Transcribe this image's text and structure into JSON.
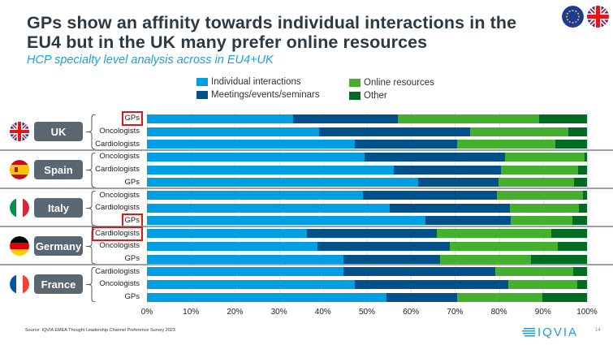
{
  "header": {
    "title": "GPs show an affinity towards individual interactions in the EU4 but in the UK many prefer online resources",
    "subtitle": "HCP specialty level analysis across in EU4+UK",
    "flags": [
      "eu-flag",
      "uk-flag"
    ]
  },
  "colors": {
    "individual": "#009fe3",
    "meetings": "#00508a",
    "online": "#44b02e",
    "other": "#006b22",
    "country_box": "#5b6770",
    "highlight": "#e0161b"
  },
  "chart_data": {
    "type": "bar",
    "orientation": "horizontal-stacked-100",
    "title": "HCP specialty level analysis across in EU4+UK",
    "xlabel": "",
    "ylabel": "",
    "xlim": [
      0,
      100
    ],
    "x_ticks": [
      "0%",
      "10%",
      "20%",
      "30%",
      "40%",
      "50%",
      "60%",
      "70%",
      "80%",
      "90%",
      "100%"
    ],
    "legend": [
      "Individual interactions",
      "Meetings/events/seminars",
      "Online resources",
      "Other"
    ],
    "legend_position": "top",
    "groups": [
      {
        "country": "UK",
        "flag": "uk-flag",
        "rows": [
          {
            "specialty": "GPs",
            "highlighted": true,
            "values": [
              33.3,
              23.7,
              32.1,
              10.9
            ]
          },
          {
            "specialty": "Oncologists",
            "highlighted": false,
            "values": [
              39.2,
              34.3,
              22.2,
              4.3
            ]
          },
          {
            "specialty": "Cardiologists",
            "highlighted": false,
            "values": [
              47.2,
              23.3,
              22.3,
              7.2
            ]
          }
        ]
      },
      {
        "country": "Spain",
        "flag": "spain-flag",
        "rows": [
          {
            "specialty": "Oncologists",
            "highlighted": false,
            "values": [
              49.5,
              31.9,
              18.0,
              0.6
            ]
          },
          {
            "specialty": "Cardiologists",
            "highlighted": false,
            "values": [
              56.1,
              24.3,
              17.6,
              2.0
            ]
          },
          {
            "specialty": "GPs",
            "highlighted": false,
            "values": [
              61.7,
              18.2,
              17.1,
              3.0
            ]
          }
        ]
      },
      {
        "country": "Italy",
        "flag": "italy-flag",
        "rows": [
          {
            "specialty": "Oncologists",
            "highlighted": false,
            "values": [
              49.1,
              30.5,
              19.5,
              0.9
            ]
          },
          {
            "specialty": "Cardiologists",
            "highlighted": false,
            "values": [
              55.2,
              27.3,
              15.7,
              1.8
            ]
          },
          {
            "specialty": "GPs",
            "highlighted": true,
            "values": [
              63.2,
              19.4,
              14.1,
              3.3
            ]
          }
        ]
      },
      {
        "country": "Germany",
        "flag": "germany-flag",
        "rows": [
          {
            "specialty": "Cardiologists",
            "highlighted": true,
            "values": [
              36.3,
              29.6,
              26.0,
              8.1
            ]
          },
          {
            "specialty": "Oncologists",
            "highlighted": false,
            "values": [
              38.8,
              30.1,
              24.5,
              6.6
            ]
          },
          {
            "specialty": "GPs",
            "highlighted": false,
            "values": [
              44.6,
              22.0,
              20.7,
              12.7
            ]
          }
        ]
      },
      {
        "country": "France",
        "flag": "france-flag",
        "rows": [
          {
            "specialty": "Cardiologists",
            "highlighted": false,
            "values": [
              44.6,
              34.6,
              17.7,
              3.1
            ]
          },
          {
            "specialty": "Oncologists",
            "highlighted": false,
            "values": [
              47.2,
              34.9,
              15.6,
              2.3
            ]
          },
          {
            "specialty": "GPs",
            "highlighted": false,
            "values": [
              54.4,
              16.0,
              19.4,
              10.2
            ]
          }
        ]
      }
    ]
  },
  "footer": {
    "source": "Source: IQVIA EMEA Thought Leadership Channel Preference Survey 2023",
    "logo_text": "IQVIA",
    "page_number": "14"
  }
}
